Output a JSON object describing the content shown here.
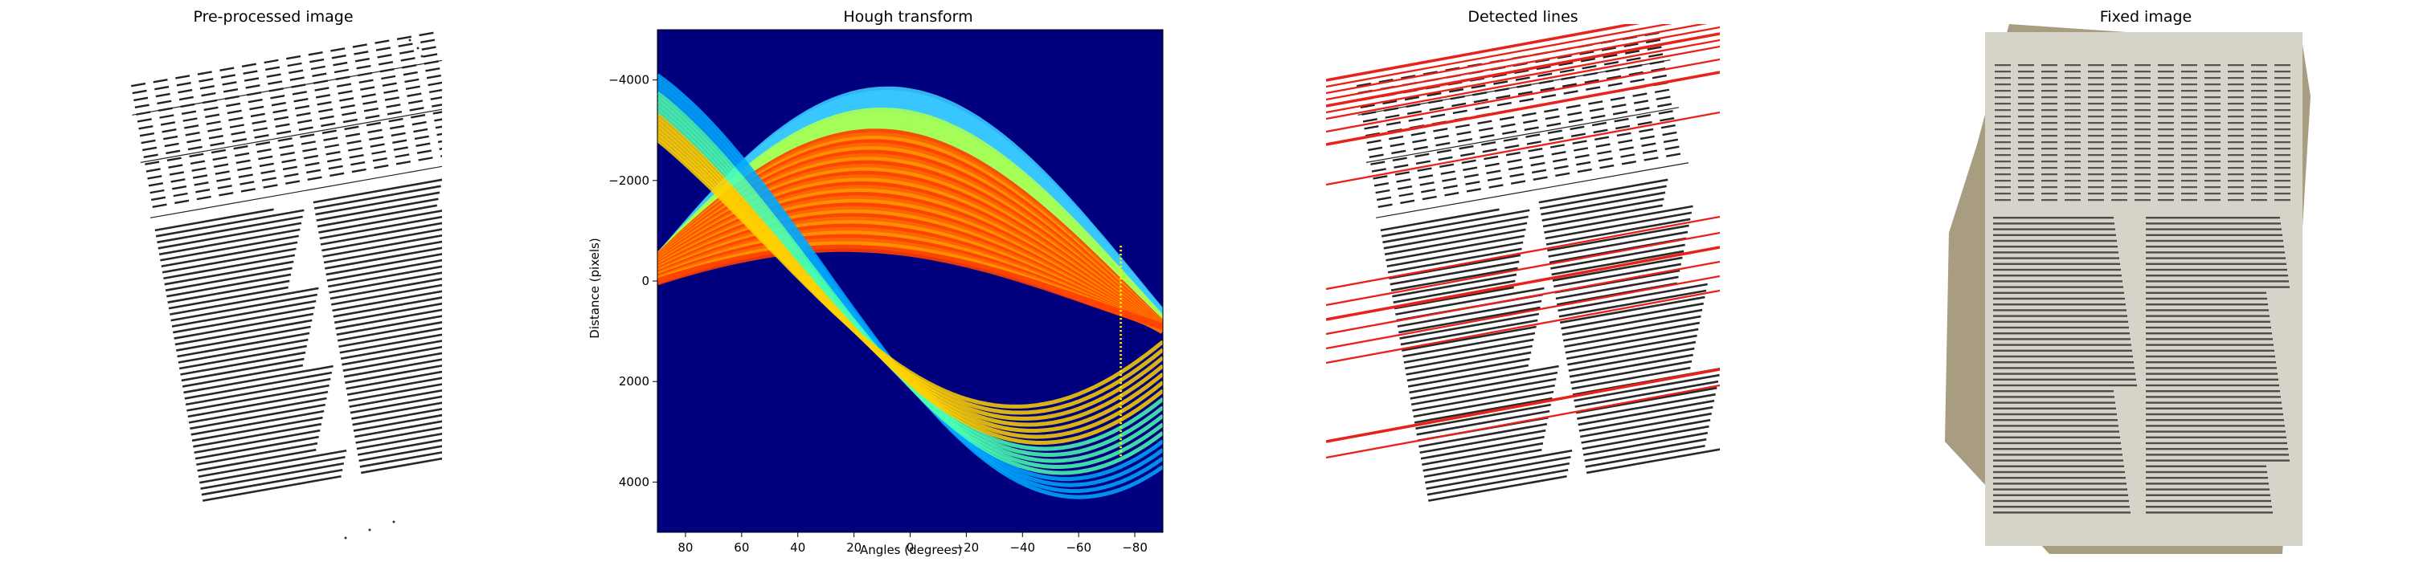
{
  "figure": {
    "panels": [
      {
        "title": "Pre-processed image"
      },
      {
        "title": "Hough transform"
      },
      {
        "title": "Detected lines"
      },
      {
        "title": "Fixed image"
      }
    ]
  },
  "chart_data": [
    {
      "type": "heatmap",
      "title": "Hough transform",
      "xlabel": "Angles (degrees)",
      "ylabel": "Distance (pixels)",
      "xlim": [
        90,
        -90
      ],
      "ylim": [
        -5000,
        5000
      ],
      "x_ticks": [
        "80",
        "60",
        "40",
        "20",
        "0",
        "−20",
        "−40",
        "−60",
        "−80"
      ],
      "x_tick_values": [
        80,
        60,
        40,
        20,
        0,
        -20,
        -40,
        -60,
        -80
      ],
      "y_ticks": [
        "−4000",
        "−2000",
        "0",
        "2000",
        "4000"
      ],
      "y_tick_values": [
        -4000,
        -2000,
        0,
        2000,
        4000
      ],
      "colormap": "jet",
      "background_color": "#00007f"
    }
  ],
  "detected_lines": {
    "color": "#e8221b",
    "count": 18
  },
  "fixed_image": {
    "background": "#a89d80",
    "page_color": "#d6d3c9"
  }
}
